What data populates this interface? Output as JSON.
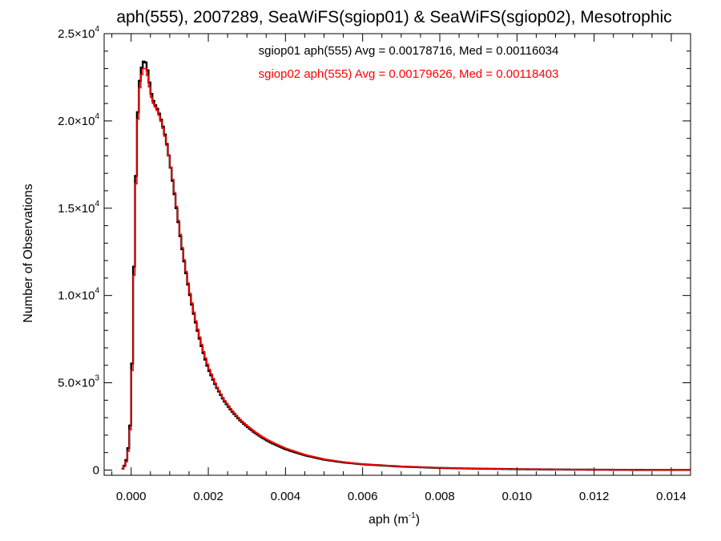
{
  "chart_data": {
    "type": "histogram-step",
    "title": "aph(555), 2007289, SeaWiFS(sgiop01) & SeaWiFS(sgiop02), Mesotrophic",
    "xlabel_base": "aph (m",
    "xlabel_sup": "-1",
    "xlabel_close": ")",
    "ylabel": "Number of Observations",
    "xlim": [
      -0.0007,
      0.0145
    ],
    "ylim": [
      -300,
      25000
    ],
    "x_ticks": [
      0.0,
      0.002,
      0.004,
      0.006,
      0.008,
      0.01,
      0.012,
      0.014
    ],
    "x_tick_labels": [
      "0.000",
      "0.002",
      "0.004",
      "0.006",
      "0.008",
      "0.010",
      "0.012",
      "0.014"
    ],
    "y_ticks": [
      0,
      5000,
      10000,
      15000,
      20000,
      25000
    ],
    "y_tick_labels": [
      {
        "base": "0",
        "exp": ""
      },
      {
        "base": "5.0×10",
        "exp": "3"
      },
      {
        "base": "1.0×10",
        "exp": "4"
      },
      {
        "base": "1.5×10",
        "exp": "4"
      },
      {
        "base": "2.0×10",
        "exp": "4"
      },
      {
        "base": "2.5×10",
        "exp": "4"
      }
    ],
    "legend_placement": "top-center",
    "bin_width": 5e-05,
    "series": [
      {
        "name": "sgiop01",
        "legend": "sgiop01 aph(555) Avg = 0.00178716, Med = 0.00116034",
        "color": "#000000",
        "points": [
          [
            -0.00025,
            0
          ],
          [
            -0.0002,
            150
          ],
          [
            -0.00015,
            350
          ],
          [
            -0.0001,
            800
          ],
          [
            -5e-05,
            1700
          ],
          [
            0.0,
            3400
          ],
          [
            5e-05,
            8800
          ],
          [
            0.0001,
            14500
          ],
          [
            0.00015,
            19200
          ],
          [
            0.0002,
            21800
          ],
          [
            0.00025,
            22800
          ],
          [
            0.0003,
            23300
          ],
          [
            0.00035,
            23500
          ],
          [
            0.0004,
            23200
          ],
          [
            0.00045,
            22600
          ],
          [
            0.0005,
            21800
          ],
          [
            0.00055,
            21300
          ],
          [
            0.0006,
            21000
          ],
          [
            0.0007,
            20600
          ],
          [
            0.0008,
            19900
          ],
          [
            0.0009,
            19000
          ],
          [
            0.001,
            17700
          ],
          [
            0.0011,
            16200
          ],
          [
            0.0012,
            14600
          ],
          [
            0.0013,
            13000
          ],
          [
            0.0014,
            11600
          ],
          [
            0.0015,
            10300
          ],
          [
            0.0016,
            9200
          ],
          [
            0.0017,
            8200
          ],
          [
            0.0018,
            7300
          ],
          [
            0.0019,
            6500
          ],
          [
            0.002,
            5800
          ],
          [
            0.0022,
            4800
          ],
          [
            0.0024,
            4000
          ],
          [
            0.0026,
            3400
          ],
          [
            0.0028,
            2900
          ],
          [
            0.003,
            2500
          ],
          [
            0.0032,
            2150
          ],
          [
            0.0034,
            1850
          ],
          [
            0.0036,
            1600
          ],
          [
            0.0038,
            1400
          ],
          [
            0.004,
            1200
          ],
          [
            0.0045,
            850
          ],
          [
            0.005,
            600
          ],
          [
            0.0055,
            440
          ],
          [
            0.006,
            330
          ],
          [
            0.007,
            200
          ],
          [
            0.008,
            120
          ],
          [
            0.009,
            80
          ],
          [
            0.01,
            50
          ],
          [
            0.011,
            30
          ],
          [
            0.012,
            20
          ],
          [
            0.013,
            10
          ],
          [
            0.0145,
            5
          ]
        ]
      },
      {
        "name": "sgiop02",
        "legend": "sgiop02 aph(555) Avg = 0.00179626, Med = 0.00118403",
        "color": "#ff0000",
        "points": [
          [
            -0.00025,
            0
          ],
          [
            -0.0002,
            120
          ],
          [
            -0.00015,
            280
          ],
          [
            -0.0001,
            650
          ],
          [
            -5e-05,
            1500
          ],
          [
            0.0,
            3100
          ],
          [
            5e-05,
            8300
          ],
          [
            0.0001,
            14000
          ],
          [
            0.00015,
            18800
          ],
          [
            0.0002,
            21400
          ],
          [
            0.00025,
            22400
          ],
          [
            0.0003,
            22900
          ],
          [
            0.00035,
            23100
          ],
          [
            0.0004,
            22900
          ],
          [
            0.00045,
            22300
          ],
          [
            0.0005,
            21600
          ],
          [
            0.00055,
            21100
          ],
          [
            0.0006,
            20900
          ],
          [
            0.0007,
            20500
          ],
          [
            0.0008,
            19800
          ],
          [
            0.0009,
            18900
          ],
          [
            0.001,
            17700
          ],
          [
            0.0011,
            16300
          ],
          [
            0.0012,
            14700
          ],
          [
            0.0013,
            13100
          ],
          [
            0.0014,
            11700
          ],
          [
            0.0015,
            10400
          ],
          [
            0.0016,
            9300
          ],
          [
            0.0017,
            8300
          ],
          [
            0.0018,
            7400
          ],
          [
            0.0019,
            6600
          ],
          [
            0.002,
            5900
          ],
          [
            0.0022,
            4850
          ],
          [
            0.0024,
            4050
          ],
          [
            0.0026,
            3450
          ],
          [
            0.0028,
            2950
          ],
          [
            0.003,
            2550
          ],
          [
            0.0032,
            2200
          ],
          [
            0.0034,
            1900
          ],
          [
            0.0036,
            1650
          ],
          [
            0.0038,
            1450
          ],
          [
            0.004,
            1250
          ],
          [
            0.0045,
            880
          ],
          [
            0.005,
            620
          ],
          [
            0.0055,
            460
          ],
          [
            0.006,
            340
          ],
          [
            0.007,
            210
          ],
          [
            0.008,
            125
          ],
          [
            0.009,
            85
          ],
          [
            0.01,
            52
          ],
          [
            0.011,
            32
          ],
          [
            0.012,
            22
          ],
          [
            0.013,
            11
          ],
          [
            0.0145,
            5
          ]
        ]
      }
    ]
  }
}
